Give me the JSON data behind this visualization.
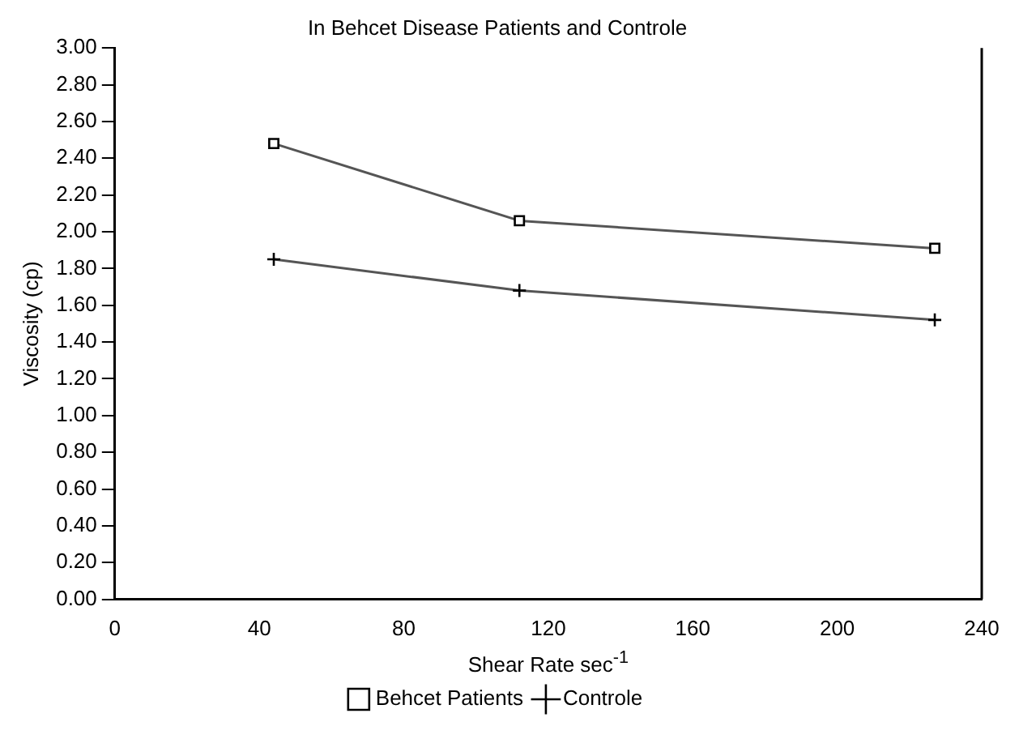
{
  "chart_data": {
    "type": "line",
    "title": "In Behcet Disease Patients and Controle",
    "xlabel": "Shear Rate sec$^{-1}$",
    "ylabel": "Viscosity (cp)",
    "x": [
      44,
      112,
      227
    ],
    "series": [
      {
        "name": "Behcet Patients",
        "color": "#555555",
        "values": [
          2.48,
          2.06,
          1.91
        ],
        "marker": "square"
      },
      {
        "name": "Controle",
        "color": "#555555",
        "values": [
          1.85,
          1.68,
          1.52
        ],
        "marker": "cross"
      }
    ],
    "xlim": [
      0,
      240
    ],
    "xticks": [
      0,
      40,
      80,
      120,
      160,
      200,
      240
    ],
    "ylim": [
      0,
      3
    ],
    "yticks": [
      {
        "value": 0,
        "label": "0.00"
      },
      {
        "value": 0.2,
        "label": "0.20"
      },
      {
        "value": 0.4,
        "label": "0.40"
      },
      {
        "value": 0.6,
        "label": "0.60"
      },
      {
        "value": 0.8,
        "label": "0.80"
      },
      {
        "value": 1,
        "label": "1.00"
      },
      {
        "value": 1.2,
        "label": "1.20"
      },
      {
        "value": 1.4,
        "label": "1.40"
      },
      {
        "value": 1.6,
        "label": "1.60"
      },
      {
        "value": 1.8,
        "label": "1.80"
      },
      {
        "value": 2,
        "label": "2.00"
      },
      {
        "value": 2.2,
        "label": "2.20"
      },
      {
        "value": 2.4,
        "label": "2.40"
      },
      {
        "value": 2.6,
        "label": "2.60"
      },
      {
        "value": 2.8,
        "label": "2.80"
      },
      {
        "value": 3,
        "label": "3.00"
      }
    ],
    "grid": false,
    "legend": "bottom",
    "line_style": "solid"
  }
}
